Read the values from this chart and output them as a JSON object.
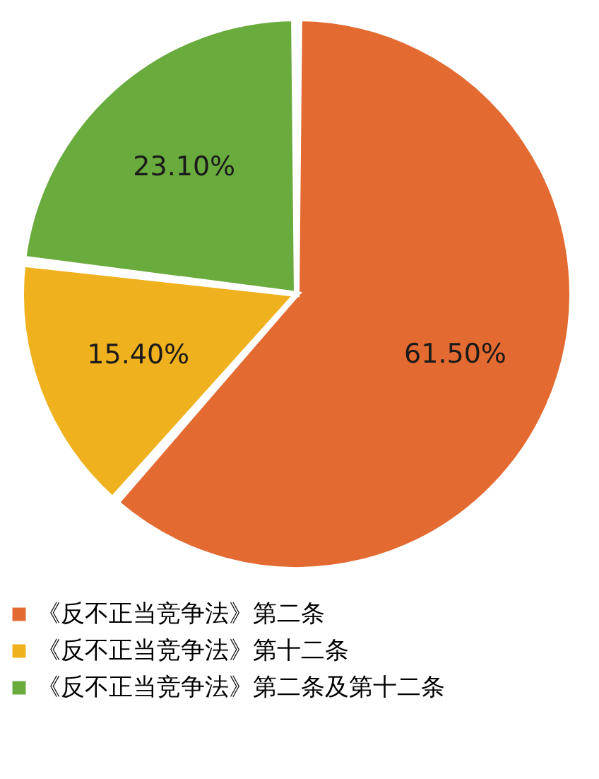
{
  "chart_data": {
    "type": "pie",
    "categories": [
      "《反不正当竞争法》第二条",
      "《反不正当竞争法》第十二条",
      "《反不正当竞争法》第二条及第十二条"
    ],
    "values": [
      61.5,
      15.4,
      23.1
    ],
    "colors": [
      "#e36a31",
      "#f0b11e",
      "#6aab3d"
    ],
    "value_labels": [
      "61.50%",
      "15.40%",
      "23.10%"
    ],
    "legend": "bottom"
  }
}
